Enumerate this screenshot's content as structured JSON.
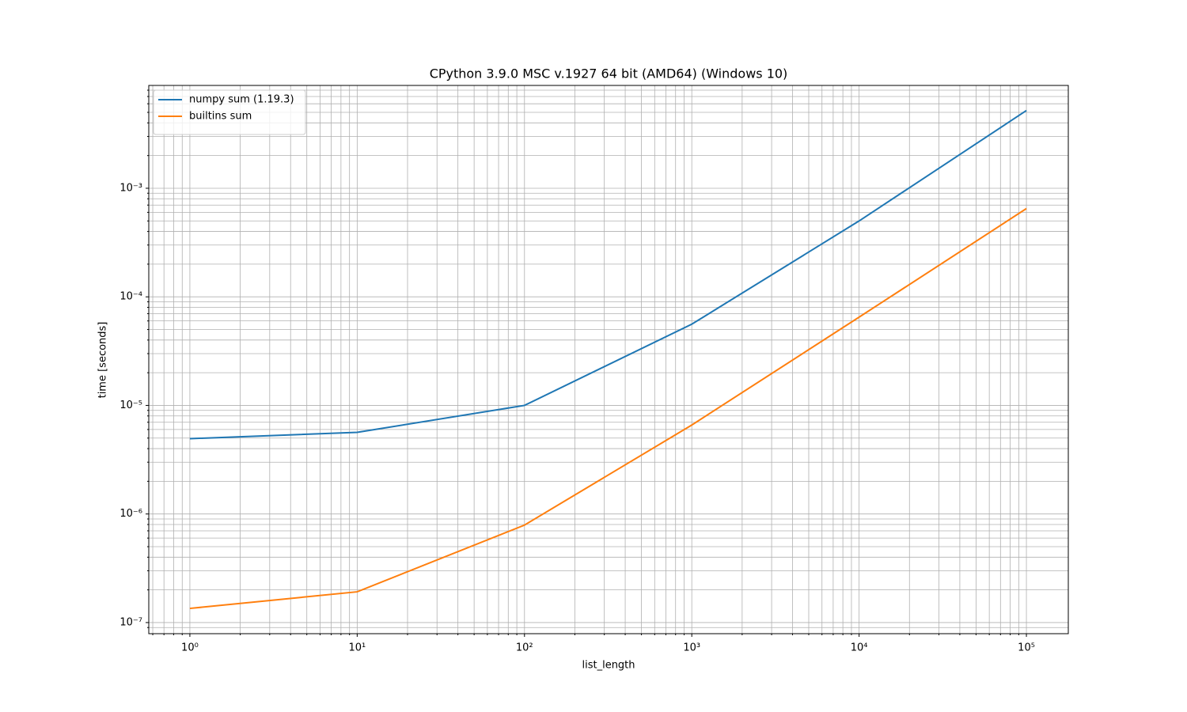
{
  "chart_data": {
    "type": "line",
    "title": "CPython 3.9.0 MSC v.1927 64 bit (AMD64) (Windows 10)",
    "xlabel": "list_length",
    "ylabel": "time [seconds]",
    "x": [
      1,
      10,
      100,
      1000,
      10000,
      100000
    ],
    "series": [
      {
        "name": "numpy sum (1.19.3)",
        "color": "#1f77b4",
        "values": [
          4.94e-06,
          5.65e-06,
          1e-05,
          5.6e-05,
          0.0005,
          0.0052
        ]
      },
      {
        "name": "builtins sum",
        "color": "#ff7f0e",
        "values": [
          1.35e-07,
          1.92e-07,
          7.9e-07,
          6.6e-06,
          6.5e-05,
          0.00065
        ]
      }
    ],
    "xscale": "log",
    "yscale": "log",
    "xlim": [
      0.568,
      178000
    ],
    "ylim": [
      7.9e-08,
      0.00885
    ],
    "xticks": [
      {
        "value": 1,
        "label": "10⁰"
      },
      {
        "value": 10,
        "label": "10¹"
      },
      {
        "value": 100,
        "label": "10²"
      },
      {
        "value": 1000,
        "label": "10³"
      },
      {
        "value": 10000,
        "label": "10⁴"
      },
      {
        "value": 100000,
        "label": "10⁵"
      }
    ],
    "yticks": [
      {
        "value": 1e-07,
        "label": "10⁻⁷"
      },
      {
        "value": 1e-06,
        "label": "10⁻⁶"
      },
      {
        "value": 1e-05,
        "label": "10⁻⁵"
      },
      {
        "value": 0.0001,
        "label": "10⁻⁴"
      },
      {
        "value": 0.001,
        "label": "10⁻³"
      }
    ],
    "xminorticks": [
      0.6,
      0.7,
      0.8,
      0.9,
      2,
      3,
      4,
      5,
      6,
      7,
      8,
      9,
      20,
      30,
      40,
      50,
      60,
      70,
      80,
      90,
      200,
      300,
      400,
      500,
      600,
      700,
      800,
      900,
      2000,
      3000,
      4000,
      5000,
      6000,
      7000,
      8000,
      9000,
      20000,
      30000,
      40000,
      50000,
      60000,
      70000,
      80000,
      90000
    ],
    "yminorticks": [
      9e-08,
      2e-07,
      3e-07,
      4e-07,
      5e-07,
      6e-07,
      7e-07,
      8e-07,
      9e-07,
      2e-06,
      3e-06,
      4e-06,
      5e-06,
      6e-06,
      7e-06,
      8e-06,
      9e-06,
      2e-05,
      3e-05,
      4e-05,
      5e-05,
      6e-05,
      7e-05,
      8e-05,
      9e-05,
      0.0002,
      0.0003,
      0.0004,
      0.0005,
      0.0006,
      0.0007,
      0.0008,
      0.0009,
      0.002,
      0.003,
      0.004,
      0.005,
      0.006,
      0.007,
      0.008
    ],
    "grid": "both",
    "legend": "upper left"
  }
}
